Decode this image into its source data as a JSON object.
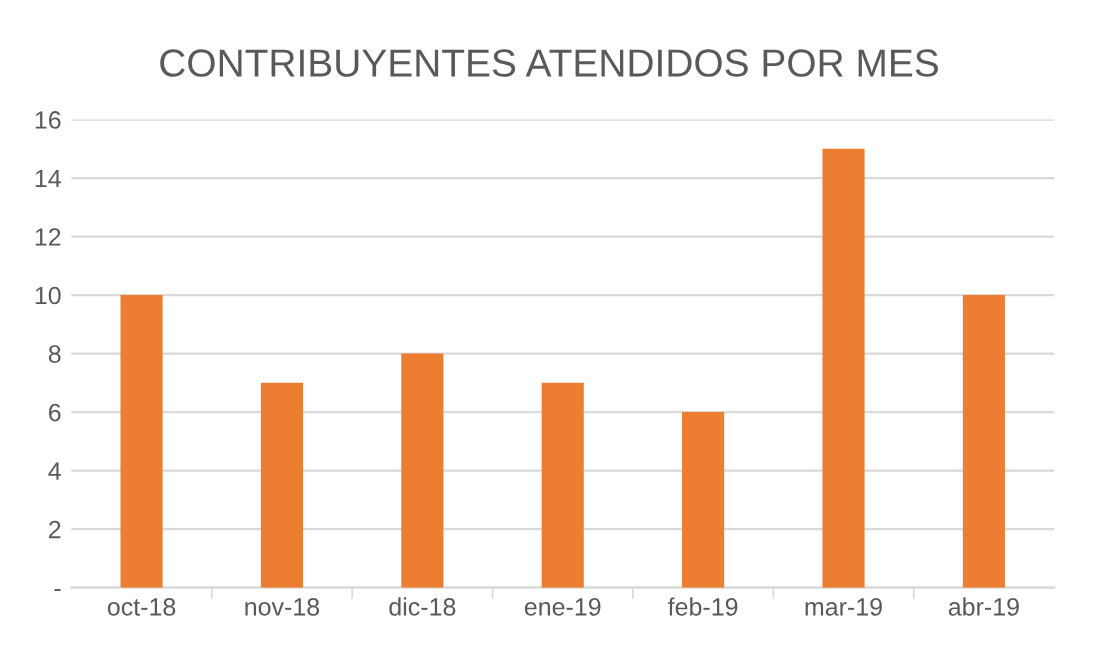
{
  "chart_data": {
    "type": "bar",
    "title": "CONTRIBUYENTES ATENDIDOS POR MES",
    "categories": [
      "oct-18",
      "nov-18",
      "dic-18",
      "ene-19",
      "feb-19",
      "mar-19",
      "abr-19"
    ],
    "values": [
      10,
      7,
      8,
      7,
      6,
      15,
      10
    ],
    "color": "#ed7d31",
    "ylim": [
      0,
      16
    ],
    "yticks": [
      {
        "value": 0,
        "label": "-"
      },
      2,
      4,
      6,
      8,
      10,
      12,
      14,
      16
    ],
    "grid": "y"
  }
}
